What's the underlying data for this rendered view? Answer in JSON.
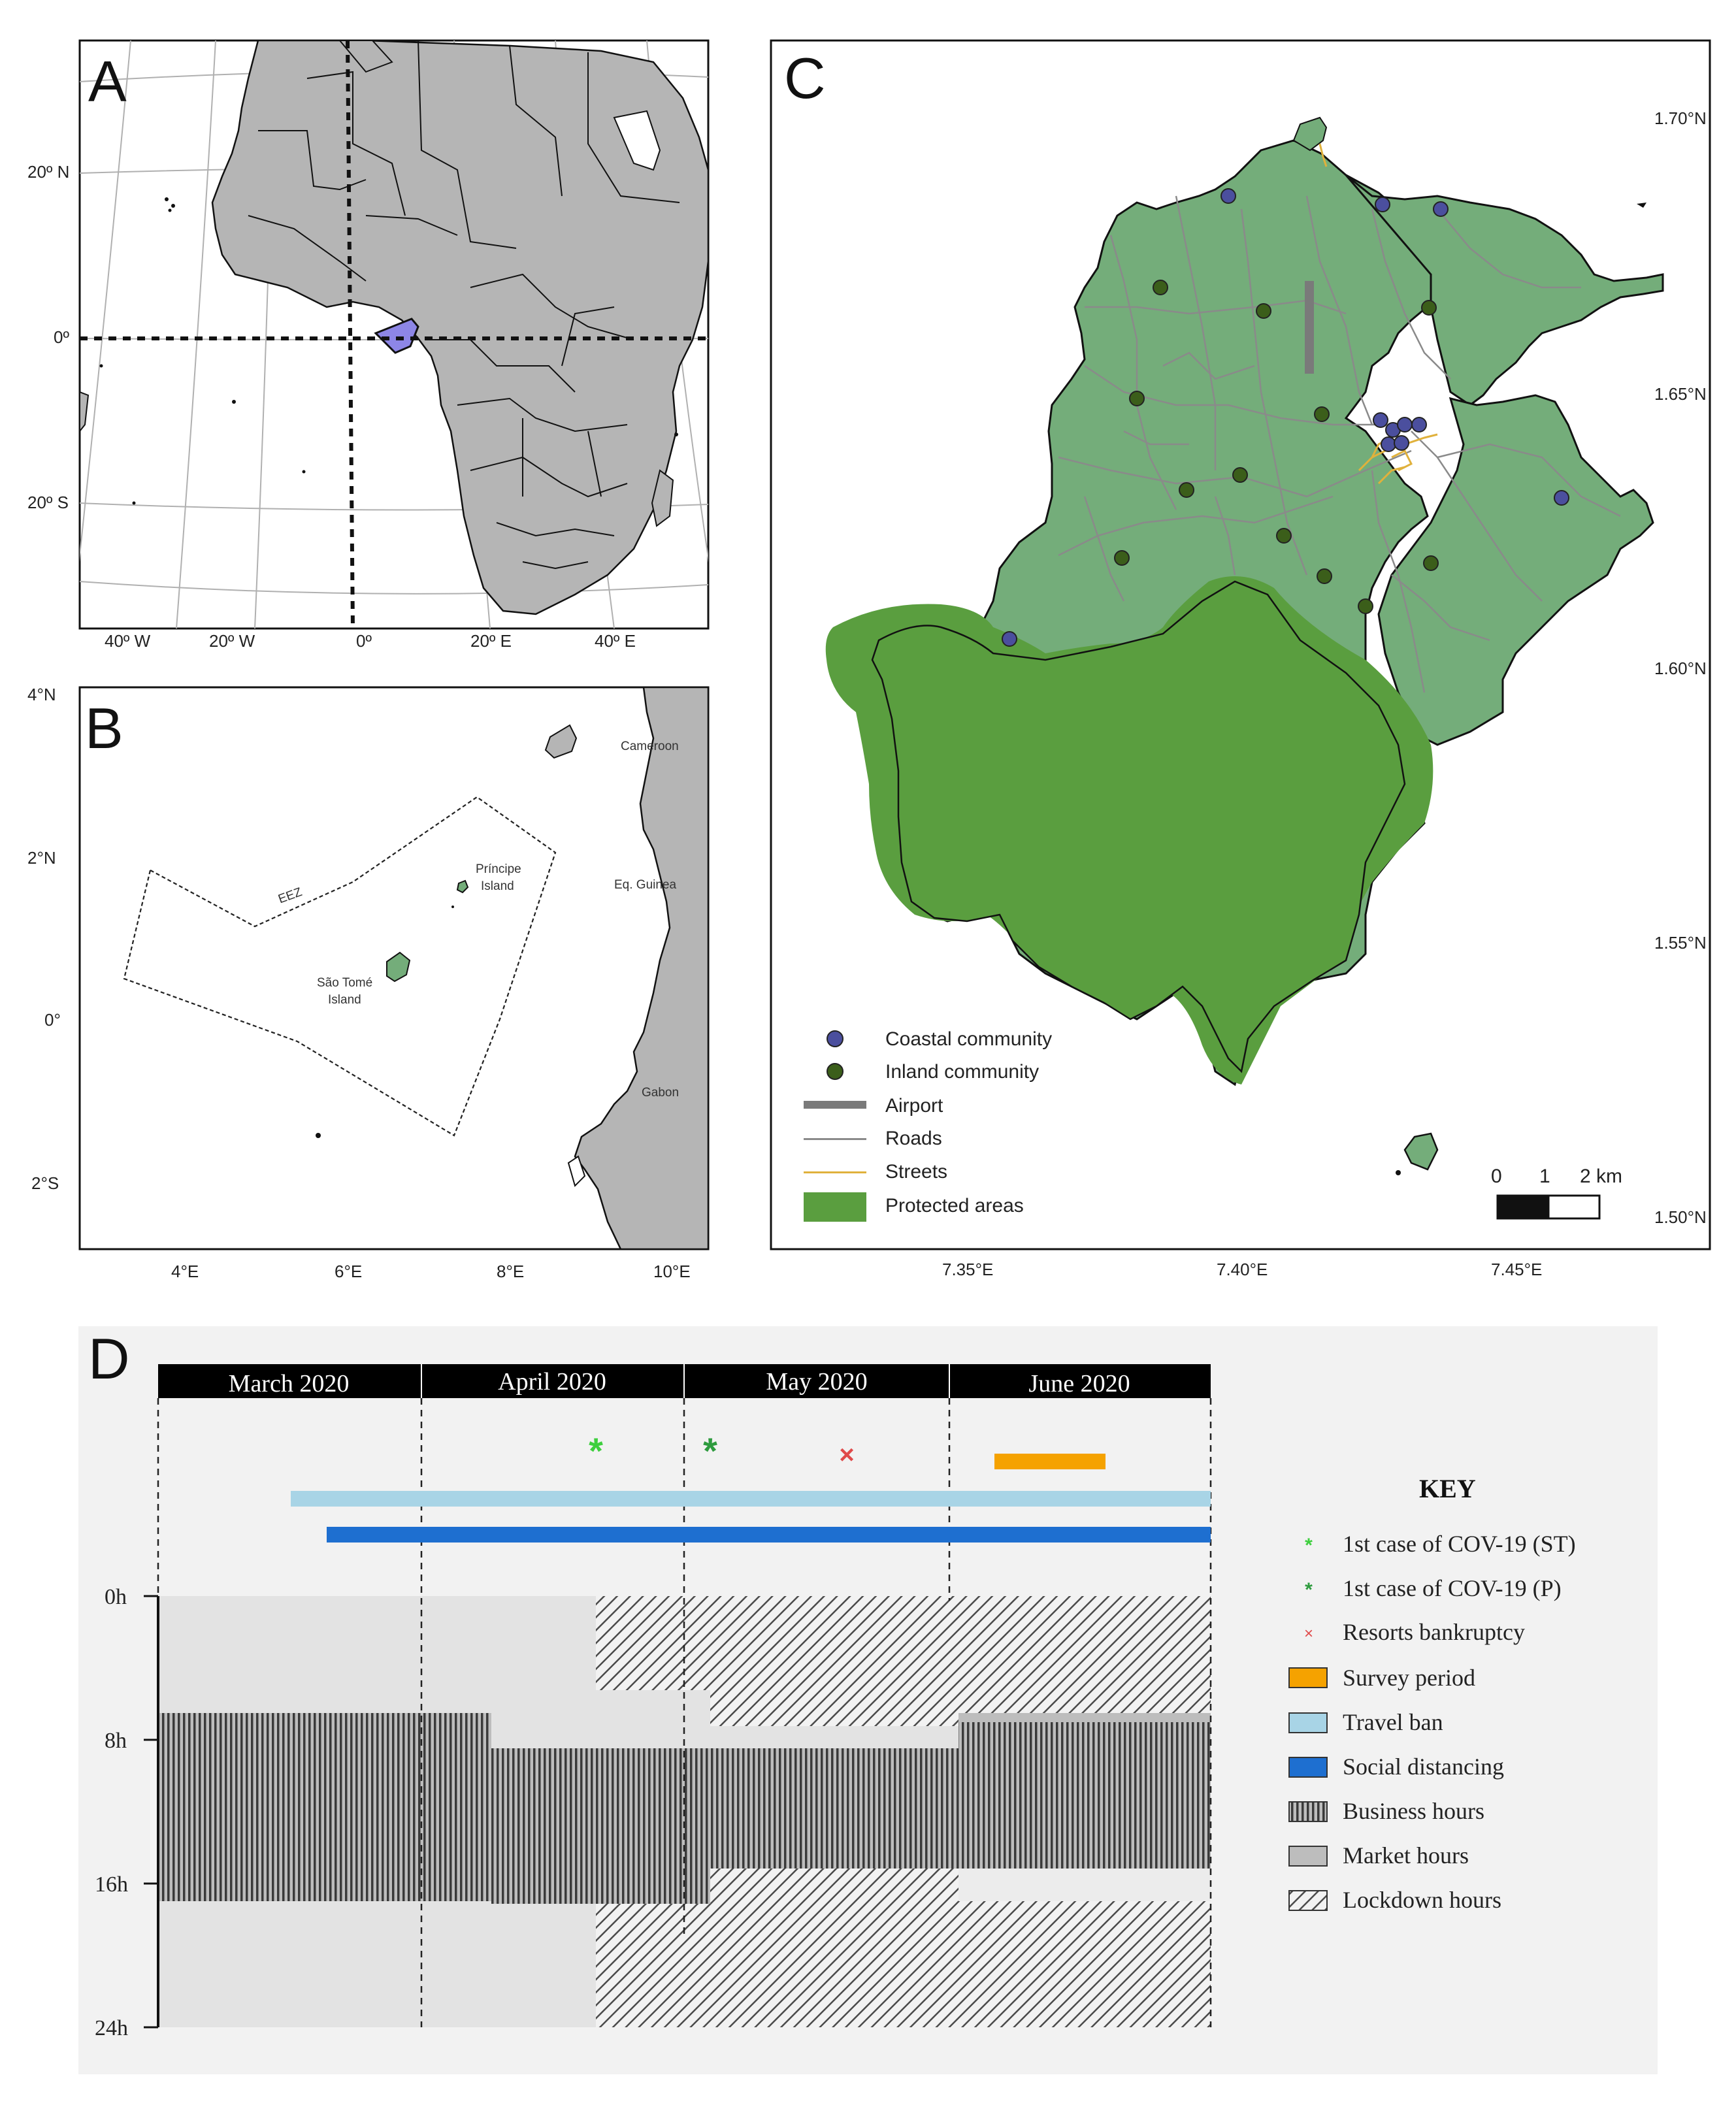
{
  "panels": {
    "a": {
      "label": "A",
      "lat_labels": [
        "20º N",
        "0º",
        "20º S"
      ],
      "lon_labels": [
        "40º W",
        "20º W",
        "0º",
        "20º E",
        "40º E"
      ]
    },
    "b": {
      "label": "B",
      "lat_labels": [
        "4°N",
        "2°N",
        "0°",
        "2°S"
      ],
      "lon_labels": [
        "4°E",
        "6°E",
        "8°E",
        "10°E"
      ],
      "places": {
        "cameroon": "Cameroon",
        "eq_guinea": "Eq. Guinea",
        "gabon": "Gabon",
        "eez": "EEZ",
        "principe_1": "Príncipe",
        "principe_2": "Island",
        "saotome_1": "São Tomé",
        "saotome_2": "Island"
      }
    },
    "c": {
      "label": "C",
      "lat_labels": [
        "1.70°N",
        "1.65°N",
        "1.60°N",
        "1.55°N",
        "1.50°N"
      ],
      "lon_labels": [
        "7.35°E",
        "7.40°E",
        "7.45°E"
      ],
      "scale": {
        "t0": "0",
        "t1": "1",
        "t2": "2 km"
      },
      "legend": {
        "coastal": "Coastal community",
        "inland": "Inland community",
        "airport": "Airport",
        "roads": "Roads",
        "streets": "Streets",
        "protected": "Protected areas"
      },
      "colors": {
        "island": "#74ad7a",
        "protected": "#5a9e3f",
        "coastal": "#4b4f9e",
        "inland": "#3b5e1a",
        "airport": "#7a7a7a",
        "streets": "#e0b13c"
      }
    },
    "d": {
      "label": "D",
      "months": [
        "March 2020",
        "April 2020",
        "May 2020",
        "June 2020"
      ],
      "hours": [
        "0h",
        "8h",
        "16h",
        "24h"
      ],
      "key": {
        "title": "KEY",
        "items": [
          "1st case of COV-19 (ST)",
          "1st case of COV-19 (P)",
          "Resorts bankruptcy",
          "Survey period",
          "Travel ban",
          "Social distancing",
          "Business hours",
          "Market hours",
          "Lockdown hours"
        ]
      },
      "colors": {
        "case_st": "#3ecf3e",
        "case_p": "#2e9b3e",
        "bankruptcy": "#e04a4a",
        "survey": "#f5a200",
        "travel_ban": "#a8d4e6",
        "social_distancing": "#1e6fd0"
      }
    }
  }
}
